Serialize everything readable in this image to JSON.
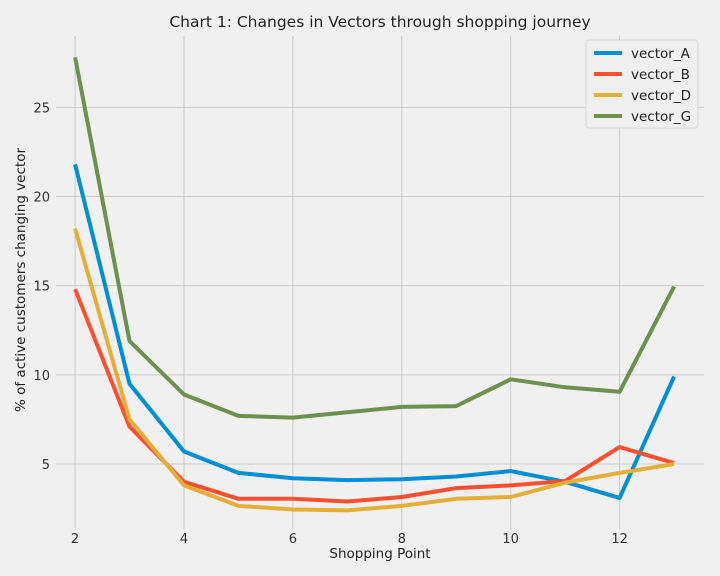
{
  "chart_data": {
    "type": "line",
    "title": "Chart 1: Changes in Vectors through shopping journey",
    "xlabel": "Shopping Point",
    "ylabel": "% of active customers changing vector",
    "x": [
      2,
      3,
      4,
      5,
      6,
      7,
      8,
      9,
      10,
      11,
      12,
      13
    ],
    "xlim": [
      1.65,
      13.55
    ],
    "ylim": [
      1.3,
      29.0
    ],
    "xticks": [
      2,
      4,
      6,
      8,
      10,
      12
    ],
    "yticks": [
      5,
      10,
      15,
      20,
      25
    ],
    "grid": true,
    "legend_position": "top-right",
    "series": [
      {
        "name": "vector_A",
        "color": "#008fd5",
        "values": [
          21.8,
          9.5,
          5.7,
          4.5,
          4.2,
          4.1,
          4.15,
          4.3,
          4.6,
          4.0,
          3.1,
          9.9
        ]
      },
      {
        "name": "vector_B",
        "color": "#fc4f30",
        "values": [
          14.8,
          7.1,
          4.0,
          3.05,
          3.05,
          2.9,
          3.15,
          3.65,
          3.8,
          4.05,
          5.95,
          5.05
        ]
      },
      {
        "name": "vector_D",
        "color": "#e5ae38",
        "values": [
          18.2,
          7.5,
          3.8,
          2.65,
          2.45,
          2.4,
          2.65,
          3.05,
          3.15,
          3.95,
          4.5,
          5.0
        ]
      },
      {
        "name": "vector_G",
        "color": "#6d904f",
        "values": [
          27.8,
          11.9,
          8.9,
          7.7,
          7.6,
          7.9,
          8.2,
          8.25,
          9.75,
          9.3,
          9.05,
          14.95
        ]
      }
    ]
  }
}
